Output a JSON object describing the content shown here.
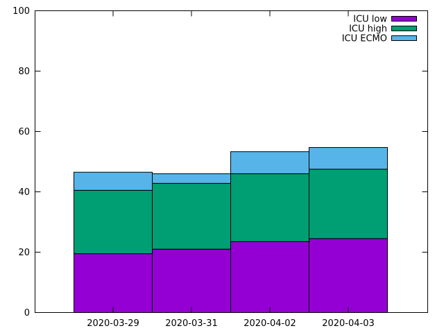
{
  "chart_data": {
    "type": "bar",
    "stacked": true,
    "categories": [
      "2020-03-29",
      "2020-03-31",
      "2020-04-02",
      "2020-04-03"
    ],
    "series": [
      {
        "name": "ICU low",
        "color": "#9400d3",
        "values": [
          19.5,
          21.0,
          23.5,
          24.5
        ]
      },
      {
        "name": "ICU high",
        "color": "#009e73",
        "values": [
          21.0,
          21.8,
          22.5,
          23.0
        ]
      },
      {
        "name": "ICU ECMO",
        "color": "#56b4e9",
        "values": [
          6.0,
          3.2,
          7.3,
          7.2
        ]
      }
    ],
    "ylim": [
      0,
      100
    ],
    "yticks": [
      0,
      20,
      40,
      60,
      80,
      100
    ],
    "xlabel": "",
    "ylabel": "",
    "title": "",
    "grid": false,
    "legend_position": "top-right"
  }
}
